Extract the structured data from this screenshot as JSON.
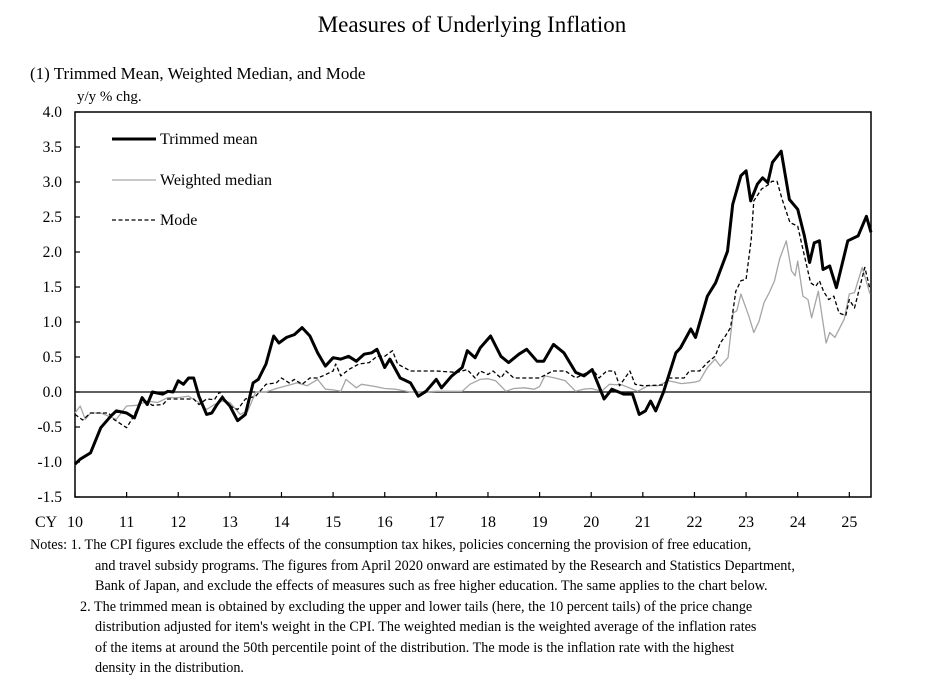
{
  "title": "Measures of Underlying Inflation",
  "chart_data": {
    "type": "line",
    "title": "(1) Trimmed Mean, Weighted Median, and Mode",
    "ylabel": "y/y % chg.",
    "xlabel_prefix": "CY",
    "xlim": [
      2010,
      2025.42
    ],
    "ylim": [
      -1.5,
      4.0
    ],
    "yticks": [
      "4.0",
      "3.5",
      "3.0",
      "2.5",
      "2.0",
      "1.5",
      "1.0",
      "0.5",
      "0.0",
      "-0.5",
      "-1.0",
      "-1.5"
    ],
    "xticks": [
      "10",
      "11",
      "12",
      "13",
      "14",
      "15",
      "16",
      "17",
      "18",
      "19",
      "20",
      "21",
      "22",
      "23",
      "24",
      "25"
    ],
    "grid": false,
    "zero_line": true,
    "legend_position": "top-left",
    "series": [
      {
        "name": "Trimmed mean",
        "color": "#000000",
        "style": "solid-thick",
        "x": [
          2010.0,
          2010.1,
          2010.3,
          2010.5,
          2010.7,
          2010.8,
          2011.0,
          2011.15,
          2011.3,
          2011.4,
          2011.5,
          2011.7,
          2011.8,
          2011.9,
          2012.0,
          2012.1,
          2012.2,
          2012.3,
          2012.4,
          2012.55,
          2012.65,
          2012.75,
          2012.85,
          2013.0,
          2013.15,
          2013.3,
          2013.45,
          2013.55,
          2013.7,
          2013.85,
          2013.95,
          2014.1,
          2014.25,
          2014.4,
          2014.55,
          2014.7,
          2014.85,
          2015.0,
          2015.15,
          2015.3,
          2015.45,
          2015.6,
          2015.75,
          2015.85,
          2016.0,
          2016.1,
          2016.3,
          2016.5,
          2016.65,
          2016.8,
          2017.0,
          2017.1,
          2017.3,
          2017.5,
          2017.6,
          2017.75,
          2017.85,
          2018.05,
          2018.25,
          2018.4,
          2018.6,
          2018.75,
          2018.95,
          2019.08,
          2019.27,
          2019.47,
          2019.7,
          2019.86,
          2020.02,
          2020.25,
          2020.4,
          2020.63,
          2020.8,
          2020.93,
          2021.05,
          2021.15,
          2021.25,
          2021.4,
          2021.64,
          2021.73,
          2021.93,
          2022.02,
          2022.25,
          2022.41,
          2022.64,
          2022.74,
          2022.9,
          2023.0,
          2023.09,
          2023.22,
          2023.32,
          2023.42,
          2023.51,
          2023.68,
          2023.84,
          2024.0,
          2024.13,
          2024.23,
          2024.32,
          2024.42,
          2024.49,
          2024.62,
          2024.75,
          2024.97,
          2025.17,
          2025.33,
          2025.42
        ],
        "y": [
          -1.03,
          -0.96,
          -0.87,
          -0.51,
          -0.34,
          -0.27,
          -0.3,
          -0.37,
          -0.08,
          -0.18,
          0.0,
          -0.03,
          0.01,
          0.0,
          0.16,
          0.11,
          0.2,
          0.2,
          -0.06,
          -0.32,
          -0.3,
          -0.18,
          -0.08,
          -0.2,
          -0.41,
          -0.32,
          0.13,
          0.18,
          0.4,
          0.8,
          0.7,
          0.78,
          0.82,
          0.92,
          0.8,
          0.56,
          0.37,
          0.49,
          0.47,
          0.51,
          0.44,
          0.54,
          0.56,
          0.61,
          0.35,
          0.47,
          0.2,
          0.13,
          -0.06,
          0.01,
          0.18,
          0.06,
          0.23,
          0.35,
          0.59,
          0.49,
          0.63,
          0.8,
          0.51,
          0.42,
          0.54,
          0.61,
          0.44,
          0.44,
          0.68,
          0.56,
          0.28,
          0.23,
          0.32,
          -0.1,
          0.04,
          -0.03,
          -0.03,
          -0.32,
          -0.27,
          -0.13,
          -0.27,
          0.0,
          0.56,
          0.63,
          0.9,
          0.78,
          1.37,
          1.56,
          2.01,
          2.68,
          3.09,
          3.16,
          2.73,
          2.97,
          3.06,
          2.99,
          3.28,
          3.44,
          2.75,
          2.61,
          2.23,
          1.85,
          2.13,
          2.16,
          1.75,
          1.8,
          1.49,
          2.16,
          2.23,
          2.51,
          2.28
        ]
      },
      {
        "name": "Weighted median",
        "color": "#a6a6a6",
        "style": "solid-thin",
        "x": [
          2010.0,
          2010.1,
          2010.2,
          2010.3,
          2010.5,
          2010.8,
          2011.0,
          2011.2,
          2011.4,
          2011.6,
          2011.8,
          2012.0,
          2012.2,
          2012.4,
          2012.55,
          2012.7,
          2012.85,
          2013.0,
          2013.2,
          2013.35,
          2013.5,
          2013.7,
          2013.9,
          2014.1,
          2014.3,
          2014.5,
          2014.7,
          2014.85,
          2015.0,
          2015.15,
          2015.25,
          2015.45,
          2015.55,
          2015.8,
          2016.0,
          2016.2,
          2016.5,
          2016.8,
          2017.0,
          2017.2,
          2017.5,
          2017.65,
          2017.85,
          2018.0,
          2018.15,
          2018.35,
          2018.5,
          2018.7,
          2018.9,
          2019.0,
          2019.1,
          2019.3,
          2019.5,
          2019.7,
          2019.85,
          2020.0,
          2020.2,
          2020.35,
          2020.6,
          2020.9,
          2021.1,
          2021.3,
          2021.5,
          2021.75,
          2022.0,
          2022.1,
          2022.25,
          2022.4,
          2022.5,
          2022.65,
          2022.75,
          2022.82,
          2022.9,
          2023.05,
          2023.15,
          2023.25,
          2023.35,
          2023.45,
          2023.55,
          2023.65,
          2023.78,
          2023.88,
          2023.95,
          2024.0,
          2024.1,
          2024.2,
          2024.27,
          2024.4,
          2024.55,
          2024.62,
          2024.72,
          2024.9,
          2025.0,
          2025.1,
          2025.25,
          2025.4
        ],
        "y": [
          -0.3,
          -0.2,
          -0.39,
          -0.3,
          -0.3,
          -0.39,
          -0.2,
          -0.19,
          -0.13,
          -0.15,
          -0.08,
          -0.08,
          -0.06,
          -0.15,
          -0.25,
          -0.18,
          -0.13,
          -0.15,
          -0.32,
          -0.27,
          0.0,
          0.0,
          0.05,
          0.09,
          0.13,
          0.09,
          0.18,
          0.04,
          0.03,
          0.01,
          0.18,
          0.06,
          0.11,
          0.08,
          0.05,
          0.04,
          0.0,
          0.0,
          0.01,
          0.01,
          0.01,
          0.11,
          0.18,
          0.19,
          0.16,
          0.01,
          0.05,
          0.06,
          0.04,
          0.08,
          0.23,
          0.2,
          0.16,
          0.01,
          0.04,
          0.05,
          0.01,
          0.11,
          0.1,
          0.01,
          0.09,
          0.09,
          0.16,
          0.12,
          0.14,
          0.16,
          0.35,
          0.47,
          0.37,
          0.49,
          1.13,
          1.16,
          1.4,
          1.09,
          0.85,
          1.01,
          1.28,
          1.42,
          1.59,
          1.9,
          2.16,
          1.73,
          1.66,
          1.87,
          1.37,
          1.32,
          1.06,
          1.44,
          0.7,
          0.85,
          0.78,
          1.04,
          1.4,
          1.42,
          1.78,
          1.4
        ]
      },
      {
        "name": "Mode",
        "color": "#000000",
        "style": "dashed",
        "x": [
          2010.0,
          2010.15,
          2010.3,
          2010.65,
          2010.75,
          2011.0,
          2011.1,
          2011.3,
          2011.5,
          2011.7,
          2011.8,
          2012.0,
          2012.3,
          2012.4,
          2012.55,
          2012.7,
          2012.8,
          2013.0,
          2013.15,
          2013.3,
          2013.5,
          2013.7,
          2013.9,
          2014.0,
          2014.15,
          2014.25,
          2014.4,
          2014.55,
          2014.7,
          2014.8,
          2015.0,
          2015.05,
          2015.15,
          2015.3,
          2015.5,
          2015.7,
          2015.85,
          2016.0,
          2016.15,
          2016.25,
          2016.5,
          2016.8,
          2017.0,
          2017.4,
          2017.6,
          2017.75,
          2017.85,
          2018.0,
          2018.1,
          2018.25,
          2018.35,
          2018.5,
          2019.0,
          2019.25,
          2019.5,
          2019.7,
          2019.9,
          2020.05,
          2020.15,
          2020.3,
          2020.45,
          2020.55,
          2020.75,
          2020.85,
          2021.0,
          2021.4,
          2021.5,
          2021.8,
          2021.9,
          2022.1,
          2022.25,
          2022.4,
          2022.5,
          2022.6,
          2022.7,
          2022.8,
          2022.9,
          2023.0,
          2023.1,
          2023.15,
          2023.3,
          2023.45,
          2023.5,
          2023.6,
          2023.7,
          2023.85,
          2024.0,
          2024.1,
          2024.25,
          2024.35,
          2024.42,
          2024.5,
          2024.6,
          2024.7,
          2024.8,
          2024.93,
          2025.0,
          2025.1,
          2025.3,
          2025.4
        ],
        "y": [
          -0.32,
          -0.4,
          -0.3,
          -0.3,
          -0.39,
          -0.51,
          -0.39,
          -0.1,
          -0.19,
          -0.18,
          -0.1,
          -0.1,
          -0.1,
          -0.18,
          -0.1,
          -0.11,
          0.0,
          -0.2,
          -0.25,
          -0.1,
          -0.06,
          0.11,
          0.13,
          0.2,
          0.13,
          0.18,
          0.11,
          0.2,
          0.2,
          0.23,
          0.3,
          0.4,
          0.23,
          0.32,
          0.4,
          0.42,
          0.51,
          0.51,
          0.59,
          0.4,
          0.3,
          0.3,
          0.3,
          0.28,
          0.32,
          0.2,
          0.3,
          0.25,
          0.3,
          0.2,
          0.3,
          0.2,
          0.2,
          0.3,
          0.3,
          0.2,
          0.27,
          0.3,
          0.2,
          0.3,
          0.3,
          0.09,
          0.3,
          0.11,
          0.09,
          0.1,
          0.2,
          0.2,
          0.3,
          0.3,
          0.42,
          0.51,
          0.7,
          0.8,
          0.92,
          1.44,
          1.59,
          1.61,
          2.18,
          2.73,
          2.9,
          2.97,
          3.01,
          3.01,
          2.75,
          2.42,
          2.37,
          2.04,
          1.56,
          1.51,
          1.59,
          1.44,
          1.32,
          1.37,
          1.13,
          1.09,
          1.32,
          1.2,
          1.78,
          1.47
        ]
      }
    ]
  },
  "notes": {
    "label": "Notes:",
    "n1": [
      "1. The CPI figures exclude the effects of the consumption tax hikes, policies concerning the provision of free education,",
      "and travel subsidy programs. The figures from April 2020 onward are estimated by the Research and Statistics Department,",
      "Bank of Japan, and exclude the effects of measures such as free higher education. The same applies to the chart below."
    ],
    "n2": [
      "2. The trimmed mean is obtained by excluding the upper and lower tails (here, the 10 percent tails) of the price change",
      "distribution adjusted for item's weight in the CPI. The weighted median is the weighted average of the inflation rates",
      "of the items at around the 50th percentile point of the distribution. The mode is the inflation rate with the highest",
      "density in the distribution."
    ]
  }
}
